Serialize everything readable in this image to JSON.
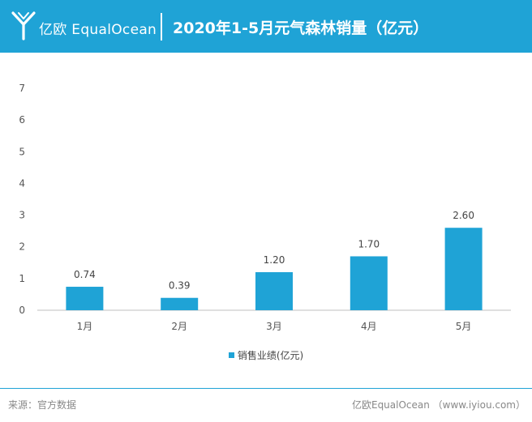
{
  "header": {
    "brand": "亿欧 EqualOcean",
    "title": "2020年1-5月元气森林销量（亿元）",
    "bg_color": "#1fa3d6",
    "logo_icon": "y-logo-icon"
  },
  "chart_data": {
    "type": "bar",
    "title": "2020年1-5月元气森林销量（亿元）",
    "categories": [
      "1月",
      "2月",
      "3月",
      "4月",
      "5月"
    ],
    "series": [
      {
        "name": "销售业绩(亿元)",
        "values": [
          0.74,
          0.39,
          1.2,
          1.7,
          2.6
        ],
        "labels": [
          "0.74",
          "0.39",
          "1.20",
          "1.70",
          "2.60"
        ],
        "color": "#1fa3d6"
      }
    ],
    "ylim": [
      0,
      7
    ],
    "yticks": [
      0,
      1,
      2,
      3,
      4,
      5,
      6,
      7
    ],
    "xlabel": "",
    "ylabel": "",
    "grid": false,
    "legend": "bottom"
  },
  "footer": {
    "source": "来源：官方数据",
    "credit": "亿欧EqualOcean （www.iyiou.com）"
  }
}
